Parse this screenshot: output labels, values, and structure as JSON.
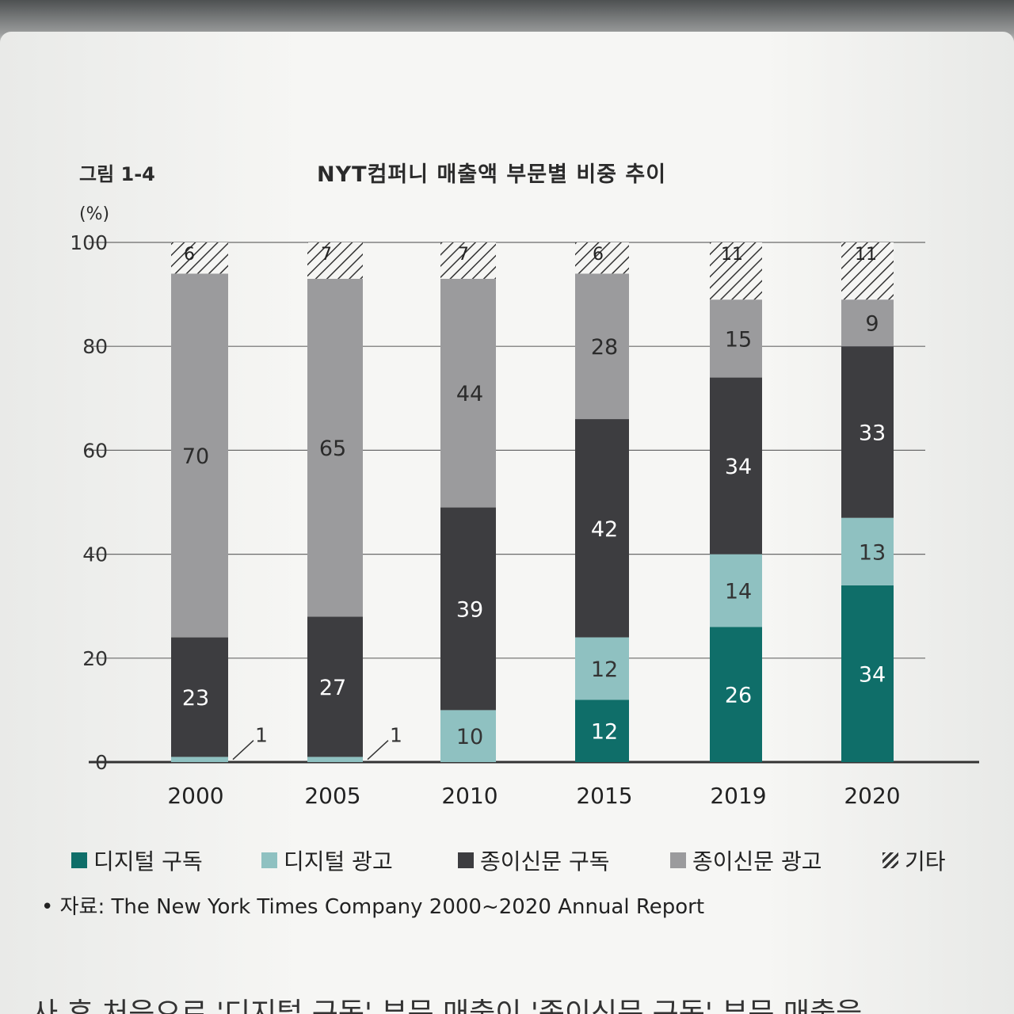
{
  "figure_label": "그림 1-4",
  "unit_label": "(%)",
  "source_text": "• 자료: The New York Times Company 2000~2020 Annual Report",
  "bottom_text": "사 후 처음으로 '디지털 구독' 부문 매출이 '종이신문 구독' 부문 매출을",
  "colors": {
    "digital_subscription": "#0f6e69",
    "digital_ads": "#8fc1c1",
    "print_subscription": "#3d3d40",
    "print_ads": "#9b9b9d",
    "other_hatch": "#333333"
  },
  "legend": [
    {
      "label": "디지털 구독",
      "swatch": "digital_subscription"
    },
    {
      "label": "디지털 광고",
      "swatch": "digital_ads"
    },
    {
      "label": "종이신문 구독",
      "swatch": "print_subscription"
    },
    {
      "label": "종이신문 광고",
      "swatch": "print_ads"
    },
    {
      "label": "기타",
      "swatch": "other_hatch"
    }
  ],
  "chart_data": {
    "type": "bar",
    "stacked": true,
    "title": "NYT컴퍼니 매출액 부문별 비중 추이",
    "ylabel": "(%)",
    "ylim": [
      0,
      100
    ],
    "yticks": [
      0,
      20,
      40,
      60,
      80,
      100
    ],
    "categories": [
      "2000",
      "2005",
      "2010",
      "2015",
      "2019",
      "2020"
    ],
    "series": [
      {
        "name": "디지털 구독",
        "values": [
          0,
          0,
          0,
          12,
          26,
          34
        ]
      },
      {
        "name": "디지털 광고",
        "values": [
          1,
          1,
          10,
          12,
          14,
          13
        ]
      },
      {
        "name": "종이신문 구독",
        "values": [
          23,
          27,
          39,
          42,
          34,
          33
        ]
      },
      {
        "name": "종이신문 광고",
        "values": [
          70,
          65,
          44,
          28,
          15,
          9
        ]
      },
      {
        "name": "기타",
        "values": [
          6,
          7,
          7,
          6,
          11,
          11
        ]
      }
    ],
    "grid": true,
    "legend_position": "bottom"
  }
}
